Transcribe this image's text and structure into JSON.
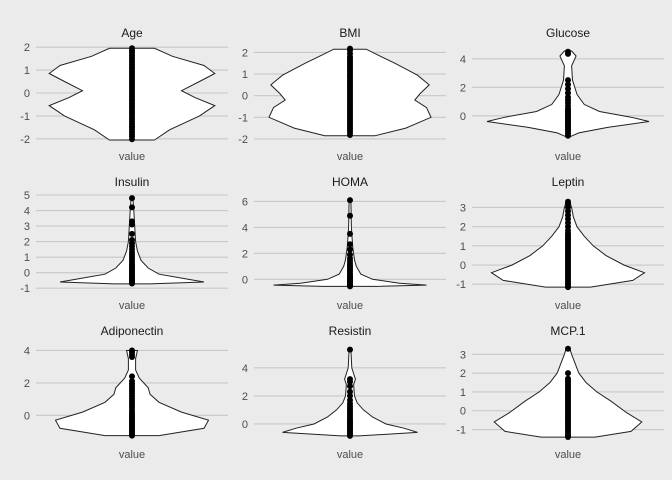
{
  "chart_data": [
    {
      "type": "violin",
      "title": "Age",
      "category": "value",
      "ylim": [
        -2.05,
        2.05
      ],
      "yticks": [
        2,
        1,
        0,
        -1,
        -2
      ],
      "ytick_labels": [
        "2",
        "1",
        "0",
        "-1",
        "-2"
      ],
      "density": [
        [
          -2.05,
          0.25
        ],
        [
          -1.6,
          0.42
        ],
        [
          -1.0,
          0.75
        ],
        [
          -0.55,
          0.92
        ],
        [
          -0.2,
          0.7
        ],
        [
          0.1,
          0.55
        ],
        [
          0.5,
          0.75
        ],
        [
          0.85,
          0.92
        ],
        [
          1.2,
          0.8
        ],
        [
          1.6,
          0.45
        ],
        [
          1.95,
          0.25
        ]
      ],
      "points": [
        -2.02,
        -1.9,
        -1.8,
        -1.7,
        -1.6,
        -1.5,
        -1.45,
        -1.35,
        -1.25,
        -1.15,
        -1.05,
        -0.95,
        -0.85,
        -0.75,
        -0.65,
        -0.55,
        -0.45,
        -0.35,
        -0.25,
        -0.15,
        -0.05,
        0.05,
        0.15,
        0.25,
        0.35,
        0.45,
        0.55,
        0.65,
        0.75,
        0.85,
        0.95,
        1.05,
        1.15,
        1.25,
        1.35,
        1.45,
        1.55,
        1.65,
        1.75,
        1.85,
        1.95
      ]
    },
    {
      "type": "violin",
      "title": "BMI",
      "category": "value",
      "ylim": [
        -2.05,
        2.3
      ],
      "yticks": [
        2,
        1,
        0,
        -1,
        -2
      ],
      "ytick_labels": [
        "2",
        "1",
        "0",
        "-1",
        "-2"
      ],
      "density": [
        [
          -1.85,
          0.28
        ],
        [
          -1.5,
          0.62
        ],
        [
          -1.0,
          0.9
        ],
        [
          -0.55,
          0.85
        ],
        [
          -0.2,
          0.72
        ],
        [
          0.1,
          0.78
        ],
        [
          0.5,
          0.88
        ],
        [
          0.95,
          0.75
        ],
        [
          1.5,
          0.5
        ],
        [
          1.9,
          0.3
        ],
        [
          2.15,
          0.18
        ]
      ],
      "points": [
        -1.82,
        -1.7,
        -1.6,
        -1.5,
        -1.4,
        -1.3,
        -1.2,
        -1.1,
        -1.0,
        -0.9,
        -0.8,
        -0.7,
        -0.6,
        -0.5,
        -0.4,
        -0.3,
        -0.2,
        -0.1,
        0.0,
        0.1,
        0.2,
        0.3,
        0.4,
        0.5,
        0.6,
        0.7,
        0.8,
        0.9,
        1.0,
        1.1,
        1.2,
        1.3,
        1.4,
        1.5,
        1.6,
        1.7,
        1.8,
        1.95,
        2.1,
        2.18
      ]
    },
    {
      "type": "violin",
      "title": "Glucose",
      "category": "value",
      "ylim": [
        -1.7,
        4.9
      ],
      "yticks": [
        4,
        2,
        0
      ],
      "ytick_labels": [
        "4",
        "2",
        "0"
      ],
      "density": [
        [
          -1.45,
          0.03
        ],
        [
          -1.2,
          0.12
        ],
        [
          -0.8,
          0.45
        ],
        [
          -0.4,
          0.9
        ],
        [
          -0.1,
          0.7
        ],
        [
          0.3,
          0.35
        ],
        [
          0.8,
          0.18
        ],
        [
          1.5,
          0.1
        ],
        [
          1.9,
          0.08
        ],
        [
          2.5,
          0.05
        ],
        [
          3.5,
          0.04
        ],
        [
          4.2,
          0.09
        ],
        [
          4.55,
          0.04
        ]
      ],
      "points": [
        -1.4,
        -1.25,
        -1.1,
        -0.95,
        -0.85,
        -0.75,
        -0.65,
        -0.55,
        -0.45,
        -0.35,
        -0.25,
        -0.15,
        -0.05,
        0.05,
        0.15,
        0.25,
        0.35,
        0.5,
        0.7,
        0.9,
        1.1,
        1.3,
        1.6,
        1.9,
        2.2,
        2.5,
        4.35,
        4.5
      ]
    },
    {
      "type": "violin",
      "title": "Insulin",
      "category": "value",
      "ylim": [
        -1.05,
        5.0
      ],
      "yticks": [
        5,
        4,
        3,
        2,
        1,
        0,
        -1
      ],
      "ytick_labels": [
        "5",
        "4",
        "3",
        "2",
        "1",
        "0",
        "-1"
      ],
      "density": [
        [
          -0.72,
          0.2
        ],
        [
          -0.6,
          0.8
        ],
        [
          -0.4,
          0.6
        ],
        [
          -0.1,
          0.3
        ],
        [
          0.3,
          0.18
        ],
        [
          0.8,
          0.1
        ],
        [
          1.4,
          0.06
        ],
        [
          2.0,
          0.04
        ],
        [
          3.0,
          0.03
        ],
        [
          4.0,
          0.02
        ],
        [
          4.8,
          0.01
        ]
      ],
      "points": [
        -0.7,
        -0.62,
        -0.55,
        -0.48,
        -0.4,
        -0.32,
        -0.25,
        -0.15,
        -0.05,
        0.05,
        0.15,
        0.25,
        0.35,
        0.45,
        0.55,
        0.7,
        0.85,
        1.0,
        1.15,
        1.3,
        1.5,
        1.7,
        1.9,
        2.1,
        2.5,
        3.1,
        3.3,
        4.2,
        4.8
      ]
    },
    {
      "type": "violin",
      "title": "HOMA",
      "category": "value",
      "ylim": [
        -0.75,
        6.5
      ],
      "yticks": [
        6,
        4,
        2,
        0
      ],
      "ytick_labels": [
        "6",
        "4",
        "2",
        "0"
      ],
      "density": [
        [
          -0.55,
          0.3
        ],
        [
          -0.45,
          0.85
        ],
        [
          -0.3,
          0.55
        ],
        [
          0.0,
          0.25
        ],
        [
          0.4,
          0.12
        ],
        [
          1.0,
          0.07
        ],
        [
          1.5,
          0.05
        ],
        [
          2.5,
          0.03
        ],
        [
          4.0,
          0.015
        ],
        [
          6.1,
          0.01
        ]
      ],
      "points": [
        -0.55,
        -0.48,
        -0.42,
        -0.36,
        -0.3,
        -0.22,
        -0.15,
        -0.08,
        0.0,
        0.1,
        0.2,
        0.3,
        0.45,
        0.6,
        0.75,
        0.9,
        1.05,
        1.2,
        1.4,
        1.6,
        1.9,
        2.3,
        2.7,
        3.5,
        4.9,
        6.1
      ]
    },
    {
      "type": "violin",
      "title": "Leptin",
      "category": "value",
      "ylim": [
        -1.25,
        3.65
      ],
      "yticks": [
        3,
        2,
        1,
        0,
        -1
      ],
      "ytick_labels": [
        "3",
        "2",
        "1",
        "0",
        "-1"
      ],
      "density": [
        [
          -1.15,
          0.25
        ],
        [
          -0.8,
          0.72
        ],
        [
          -0.4,
          0.85
        ],
        [
          0.0,
          0.62
        ],
        [
          0.5,
          0.42
        ],
        [
          1.0,
          0.28
        ],
        [
          1.5,
          0.18
        ],
        [
          2.0,
          0.1
        ],
        [
          2.5,
          0.06
        ],
        [
          3.0,
          0.04
        ],
        [
          3.3,
          0.02
        ]
      ],
      "points": [
        -1.15,
        -1.05,
        -0.95,
        -0.85,
        -0.75,
        -0.65,
        -0.55,
        -0.45,
        -0.35,
        -0.25,
        -0.15,
        -0.05,
        0.05,
        0.15,
        0.25,
        0.35,
        0.45,
        0.55,
        0.65,
        0.75,
        0.85,
        0.95,
        1.05,
        1.15,
        1.25,
        1.35,
        1.45,
        1.55,
        1.65,
        1.8,
        2.0,
        2.2,
        2.4,
        2.6,
        2.8,
        3.0,
        3.2,
        3.3
      ]
    },
    {
      "type": "violin",
      "title": "Adiponectin",
      "category": "value",
      "ylim": [
        -1.4,
        4.4
      ],
      "yticks": [
        4,
        2,
        0
      ],
      "ytick_labels": [
        "4",
        "2",
        "0"
      ],
      "density": [
        [
          -1.25,
          0.3
        ],
        [
          -0.8,
          0.8
        ],
        [
          -0.3,
          0.85
        ],
        [
          0.2,
          0.55
        ],
        [
          0.8,
          0.3
        ],
        [
          1.3,
          0.2
        ],
        [
          1.7,
          0.18
        ],
        [
          2.0,
          0.13
        ],
        [
          2.3,
          0.08
        ],
        [
          2.8,
          0.04
        ],
        [
          3.5,
          0.04
        ],
        [
          4.0,
          0.06
        ]
      ],
      "points": [
        -1.25,
        -1.15,
        -1.05,
        -0.95,
        -0.85,
        -0.75,
        -0.65,
        -0.55,
        -0.45,
        -0.35,
        -0.25,
        -0.15,
        -0.05,
        0.05,
        0.15,
        0.3,
        0.45,
        0.6,
        0.75,
        0.9,
        1.05,
        1.2,
        1.35,
        1.5,
        1.65,
        1.8,
        1.95,
        2.1,
        2.4,
        3.6,
        3.75,
        3.9,
        4.0
      ]
    },
    {
      "type": "violin",
      "title": "Resistin",
      "category": "value",
      "ylim": [
        -1.0,
        5.7
      ],
      "yticks": [
        4,
        2,
        0
      ],
      "ytick_labels": [
        "4",
        "2",
        "0"
      ],
      "density": [
        [
          -0.85,
          0.1
        ],
        [
          -0.6,
          0.75
        ],
        [
          -0.3,
          0.6
        ],
        [
          0.0,
          0.4
        ],
        [
          0.5,
          0.25
        ],
        [
          1.0,
          0.15
        ],
        [
          1.5,
          0.08
        ],
        [
          2.0,
          0.05
        ],
        [
          2.8,
          0.04
        ],
        [
          3.2,
          0.06
        ],
        [
          4.0,
          0.02
        ],
        [
          5.3,
          0.01
        ]
      ],
      "points": [
        -0.85,
        -0.75,
        -0.65,
        -0.55,
        -0.45,
        -0.35,
        -0.25,
        -0.15,
        -0.05,
        0.05,
        0.15,
        0.25,
        0.35,
        0.5,
        0.65,
        0.8,
        0.95,
        1.1,
        1.25,
        1.45,
        1.7,
        2.0,
        2.3,
        2.7,
        3.0,
        3.2,
        5.3
      ]
    },
    {
      "type": "violin",
      "title": "MCP.1",
      "category": "value",
      "ylim": [
        -1.45,
        3.55
      ],
      "yticks": [
        3,
        2,
        1,
        0,
        -1
      ],
      "ytick_labels": [
        "3",
        "2",
        "1",
        "0",
        "-1"
      ],
      "density": [
        [
          -1.4,
          0.3
        ],
        [
          -1.1,
          0.7
        ],
        [
          -0.6,
          0.82
        ],
        [
          -0.1,
          0.65
        ],
        [
          0.5,
          0.48
        ],
        [
          1.0,
          0.32
        ],
        [
          1.5,
          0.2
        ],
        [
          2.0,
          0.12
        ],
        [
          2.5,
          0.08
        ],
        [
          3.0,
          0.04
        ],
        [
          3.3,
          0.02
        ]
      ],
      "points": [
        -1.4,
        -1.3,
        -1.2,
        -1.1,
        -1.0,
        -0.9,
        -0.8,
        -0.7,
        -0.6,
        -0.5,
        -0.4,
        -0.3,
        -0.2,
        -0.1,
        0.0,
        0.1,
        0.2,
        0.3,
        0.4,
        0.5,
        0.6,
        0.7,
        0.8,
        0.9,
        1.0,
        1.1,
        1.2,
        1.3,
        1.4,
        1.5,
        1.6,
        1.7,
        2.0,
        3.3
      ]
    }
  ]
}
